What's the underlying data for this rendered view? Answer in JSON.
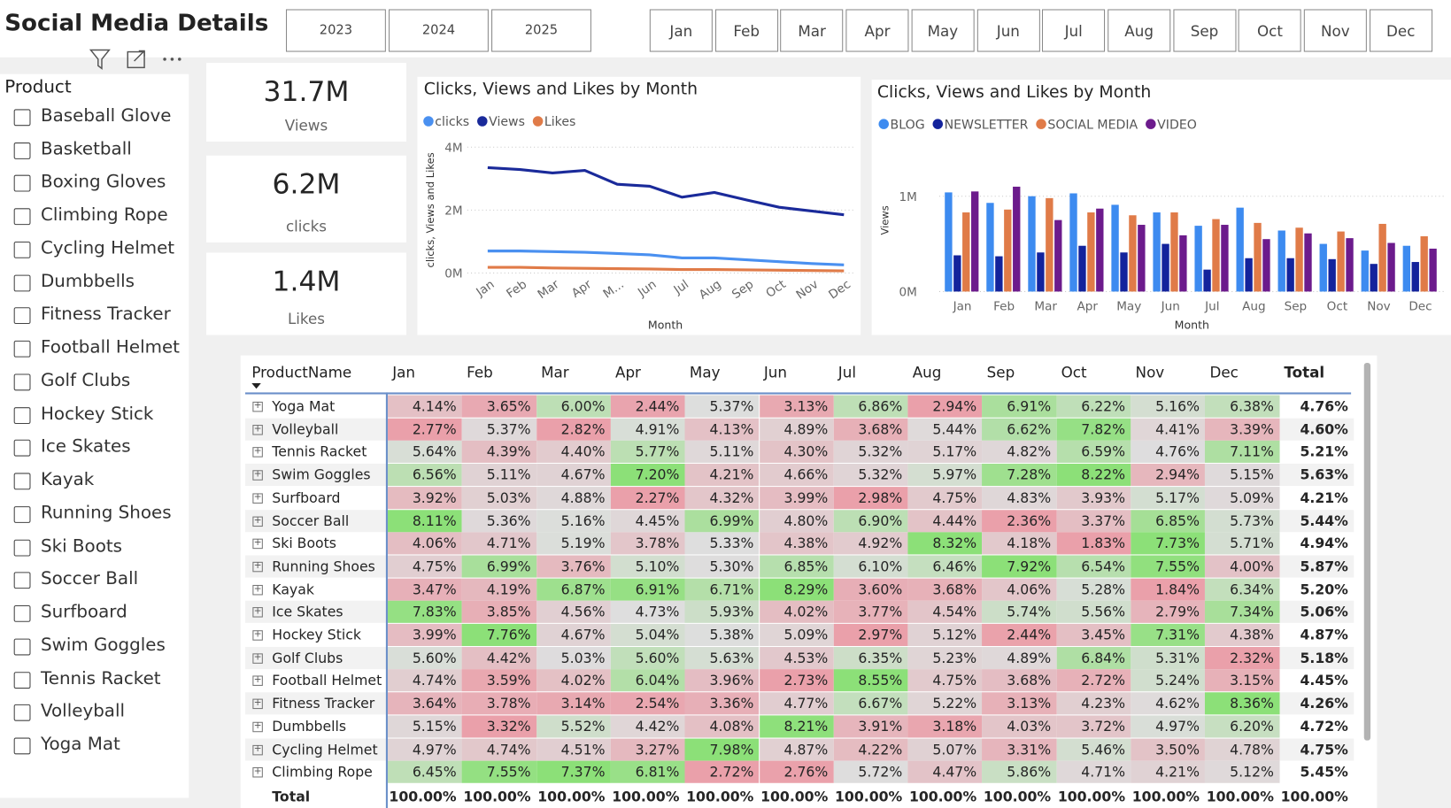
{
  "header": {
    "title": "Social Media Details"
  },
  "year_buttons": [
    "2023",
    "2024",
    "2025"
  ],
  "month_buttons": [
    "Jan",
    "Feb",
    "Mar",
    "Apr",
    "May",
    "Jun",
    "Jul",
    "Aug",
    "Sep",
    "Oct",
    "Nov",
    "Dec"
  ],
  "slicer": {
    "title": "Product",
    "items": [
      "Baseball Glove",
      "Basketball",
      "Boxing Gloves",
      "Climbing Rope",
      "Cycling Helmet",
      "Dumbbells",
      "Fitness Tracker",
      "Football Helmet",
      "Golf Clubs",
      "Hockey Stick",
      "Ice Skates",
      "Kayak",
      "Running Shoes",
      "Ski Boots",
      "Soccer Ball",
      "Surfboard",
      "Swim Goggles",
      "Tennis Racket",
      "Volleyball",
      "Yoga Mat"
    ]
  },
  "kpis": [
    {
      "value": "31.7M",
      "label": "Views"
    },
    {
      "value": "6.2M",
      "label": "clicks"
    },
    {
      "value": "1.4M",
      "label": "Likes"
    }
  ],
  "chart_data": [
    {
      "type": "line",
      "title": "Clicks, Views and Likes by Month",
      "y_label": "clicks, Views and Likes",
      "x_label": "Month",
      "categories": [
        "Jan",
        "Feb",
        "Mar",
        "Apr",
        "M...",
        "Jun",
        "Jul",
        "Aug",
        "Sep",
        "Oct",
        "Nov",
        "Dec"
      ],
      "ylim": [
        0,
        4000000
      ],
      "yticks": [
        {
          "value": 0,
          "label": "0M"
        },
        {
          "value": 2000000,
          "label": "2M"
        },
        {
          "value": 4000000,
          "label": "4M"
        }
      ],
      "grid": true,
      "legend": "top-left",
      "series": [
        {
          "name": "clicks",
          "color": "#4a90f0",
          "values": [
            700000,
            700000,
            680000,
            660000,
            620000,
            580000,
            480000,
            480000,
            420000,
            360000,
            300000,
            260000
          ]
        },
        {
          "name": "Views",
          "color": "#1a2a9a",
          "values": [
            3350000,
            3290000,
            3180000,
            3260000,
            2820000,
            2760000,
            2410000,
            2560000,
            2320000,
            2090000,
            1970000,
            1850000
          ]
        },
        {
          "name": "Likes",
          "color": "#e07b48",
          "values": [
            180000,
            180000,
            160000,
            150000,
            140000,
            130000,
            110000,
            110000,
            100000,
            90000,
            80000,
            70000
          ]
        }
      ]
    },
    {
      "type": "bar",
      "title": "Clicks, Views and Likes by Month",
      "y_label": "Views",
      "x_label": "Month",
      "categories": [
        "Jan",
        "Feb",
        "Mar",
        "Apr",
        "May",
        "Jun",
        "Jul",
        "Aug",
        "Sep",
        "Oct",
        "Nov",
        "Dec"
      ],
      "ylim": [
        0,
        1500000
      ],
      "yticks": [
        {
          "value": 0,
          "label": "0M"
        },
        {
          "value": 1000000,
          "label": "1M"
        }
      ],
      "grid": true,
      "legend": "top-left",
      "series": [
        {
          "name": "BLOG",
          "color": "#3d8bf0",
          "values": [
            1040000,
            930000,
            1000000,
            1030000,
            910000,
            830000,
            690000,
            880000,
            640000,
            500000,
            430000,
            480000
          ]
        },
        {
          "name": "NEWSLETTER",
          "color": "#13239c",
          "values": [
            380000,
            370000,
            410000,
            480000,
            410000,
            500000,
            230000,
            350000,
            350000,
            340000,
            290000,
            310000
          ]
        },
        {
          "name": "SOCIAL MEDIA",
          "color": "#e07b48",
          "values": [
            830000,
            860000,
            980000,
            830000,
            800000,
            830000,
            760000,
            720000,
            670000,
            630000,
            710000,
            580000
          ]
        },
        {
          "name": "VIDEO",
          "color": "#6c1b8c",
          "values": [
            1050000,
            1100000,
            750000,
            870000,
            700000,
            590000,
            700000,
            550000,
            610000,
            560000,
            510000,
            450000
          ]
        }
      ]
    }
  ],
  "table": {
    "columns": [
      "ProductName",
      "Jan",
      "Feb",
      "Mar",
      "Apr",
      "May",
      "Jun",
      "Jul",
      "Aug",
      "Sep",
      "Oct",
      "Nov",
      "Dec",
      "Total"
    ],
    "rows": [
      [
        "Yoga Mat",
        "4.14%",
        "3.65%",
        "6.00%",
        "2.44%",
        "5.37%",
        "3.13%",
        "6.86%",
        "2.94%",
        "6.91%",
        "6.22%",
        "5.16%",
        "6.38%",
        "4.76%"
      ],
      [
        "Volleyball",
        "2.77%",
        "5.37%",
        "2.82%",
        "4.91%",
        "4.13%",
        "4.89%",
        "3.68%",
        "5.44%",
        "6.62%",
        "7.82%",
        "4.41%",
        "3.39%",
        "4.60%"
      ],
      [
        "Tennis Racket",
        "5.64%",
        "4.39%",
        "4.40%",
        "5.77%",
        "5.11%",
        "4.30%",
        "5.32%",
        "5.17%",
        "4.82%",
        "6.59%",
        "4.76%",
        "7.11%",
        "5.21%"
      ],
      [
        "Swim Goggles",
        "6.56%",
        "5.11%",
        "4.67%",
        "7.20%",
        "4.21%",
        "4.66%",
        "5.32%",
        "5.97%",
        "7.28%",
        "8.22%",
        "2.94%",
        "5.15%",
        "5.63%"
      ],
      [
        "Surfboard",
        "3.92%",
        "5.03%",
        "4.88%",
        "2.27%",
        "4.32%",
        "3.99%",
        "2.98%",
        "4.75%",
        "4.83%",
        "3.93%",
        "5.17%",
        "5.09%",
        "4.21%"
      ],
      [
        "Soccer Ball",
        "8.11%",
        "5.36%",
        "5.16%",
        "4.45%",
        "6.99%",
        "4.80%",
        "6.90%",
        "4.44%",
        "2.36%",
        "3.37%",
        "6.85%",
        "5.73%",
        "5.44%"
      ],
      [
        "Ski Boots",
        "4.06%",
        "4.71%",
        "5.19%",
        "3.78%",
        "5.33%",
        "4.38%",
        "4.92%",
        "8.32%",
        "4.18%",
        "1.83%",
        "7.73%",
        "5.71%",
        "4.94%"
      ],
      [
        "Running Shoes",
        "4.75%",
        "6.99%",
        "3.76%",
        "5.10%",
        "5.30%",
        "6.85%",
        "6.10%",
        "6.46%",
        "7.92%",
        "6.54%",
        "7.55%",
        "4.00%",
        "5.87%"
      ],
      [
        "Kayak",
        "3.47%",
        "4.19%",
        "6.87%",
        "6.91%",
        "6.71%",
        "8.29%",
        "3.60%",
        "3.68%",
        "4.06%",
        "5.28%",
        "1.84%",
        "6.34%",
        "5.20%"
      ],
      [
        "Ice Skates",
        "7.83%",
        "3.85%",
        "4.56%",
        "4.73%",
        "5.93%",
        "4.02%",
        "3.77%",
        "4.54%",
        "5.74%",
        "5.56%",
        "2.79%",
        "7.34%",
        "5.06%"
      ],
      [
        "Hockey Stick",
        "3.99%",
        "7.76%",
        "4.67%",
        "5.04%",
        "5.38%",
        "5.09%",
        "2.97%",
        "5.12%",
        "2.44%",
        "3.45%",
        "7.31%",
        "4.38%",
        "4.87%"
      ],
      [
        "Golf Clubs",
        "5.60%",
        "4.42%",
        "5.03%",
        "5.60%",
        "5.63%",
        "4.53%",
        "6.35%",
        "5.23%",
        "4.89%",
        "6.84%",
        "5.31%",
        "2.32%",
        "5.18%"
      ],
      [
        "Football Helmet",
        "4.74%",
        "3.59%",
        "4.02%",
        "6.04%",
        "3.96%",
        "2.73%",
        "8.55%",
        "4.75%",
        "3.68%",
        "2.72%",
        "5.24%",
        "3.15%",
        "4.45%"
      ],
      [
        "Fitness Tracker",
        "3.64%",
        "3.78%",
        "3.14%",
        "2.54%",
        "3.36%",
        "4.77%",
        "6.67%",
        "5.22%",
        "3.13%",
        "4.23%",
        "4.62%",
        "8.36%",
        "4.26%"
      ],
      [
        "Dumbbells",
        "5.15%",
        "3.32%",
        "5.52%",
        "4.42%",
        "4.08%",
        "8.21%",
        "3.91%",
        "3.18%",
        "4.03%",
        "3.72%",
        "4.97%",
        "6.20%",
        "4.72%"
      ],
      [
        "Cycling Helmet",
        "4.97%",
        "4.74%",
        "4.51%",
        "3.27%",
        "7.98%",
        "4.87%",
        "4.22%",
        "5.07%",
        "3.31%",
        "5.46%",
        "3.50%",
        "4.78%",
        "4.75%"
      ],
      [
        "Climbing Rope",
        "6.45%",
        "7.55%",
        "7.37%",
        "6.81%",
        "2.72%",
        "2.76%",
        "5.72%",
        "4.47%",
        "5.86%",
        "4.71%",
        "4.21%",
        "5.12%",
        "5.45%"
      ]
    ],
    "total_row": [
      "Total",
      "100.00%",
      "100.00%",
      "100.00%",
      "100.00%",
      "100.00%",
      "100.00%",
      "100.00%",
      "100.00%",
      "100.00%",
      "100.00%",
      "100.00%",
      "100.00%",
      "100.00%"
    ]
  }
}
